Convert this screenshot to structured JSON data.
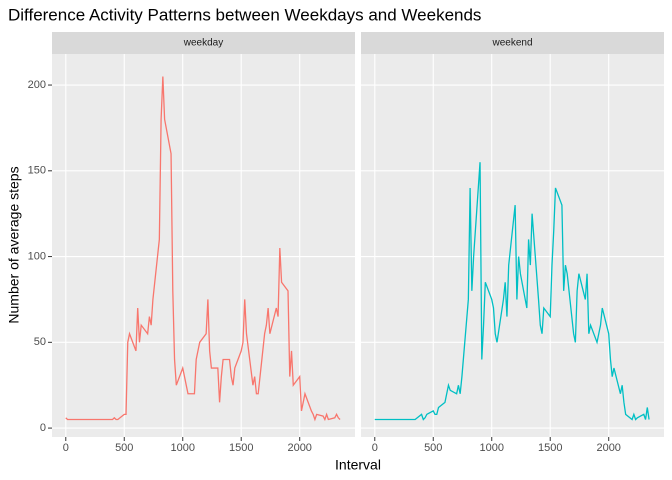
{
  "chart_data": {
    "type": "line",
    "title": "Difference Activity Patterns between Weekdays and Weekends",
    "x_label": "Interval",
    "y_label": "Number of average steps",
    "x": [
      0,
      15,
      30,
      45,
      100,
      115,
      130,
      145,
      200,
      215,
      230,
      245,
      300,
      315,
      330,
      345,
      400,
      415,
      430,
      445,
      500,
      515,
      530,
      545,
      600,
      615,
      630,
      645,
      700,
      715,
      730,
      745,
      800,
      815,
      830,
      845,
      900,
      915,
      930,
      945,
      1000,
      1015,
      1030,
      1045,
      1100,
      1115,
      1130,
      1145,
      1200,
      1215,
      1230,
      1245,
      1300,
      1315,
      1330,
      1345,
      1400,
      1415,
      1430,
      1445,
      1500,
      1515,
      1530,
      1545,
      1600,
      1615,
      1630,
      1645,
      1700,
      1715,
      1730,
      1745,
      1800,
      1815,
      1830,
      1845,
      1900,
      1915,
      1930,
      1945,
      2000,
      2015,
      2030,
      2045,
      2100,
      2115,
      2130,
      2145,
      2200,
      2215,
      2230,
      2245,
      2300,
      2315,
      2330,
      2345
    ],
    "series": [
      {
        "name": "weekday",
        "color": "#F8766D",
        "values": [
          6,
          5,
          5,
          5,
          5,
          5,
          5,
          5,
          5,
          5,
          5,
          5,
          5,
          5,
          5,
          5,
          5,
          6,
          5,
          5,
          8,
          8,
          50,
          55,
          45,
          70,
          50,
          60,
          55,
          65,
          60,
          75,
          110,
          180,
          205,
          180,
          160,
          80,
          40,
          25,
          35,
          30,
          25,
          20,
          20,
          40,
          45,
          50,
          55,
          75,
          45,
          35,
          35,
          15,
          30,
          40,
          40,
          30,
          25,
          35,
          45,
          50,
          75,
          55,
          25,
          30,
          20,
          20,
          55,
          60,
          70,
          55,
          70,
          65,
          105,
          85,
          80,
          30,
          45,
          25,
          30,
          10,
          15,
          20,
          10,
          8,
          5,
          8,
          7,
          5,
          8,
          5,
          6,
          8,
          6,
          5
        ]
      },
      {
        "name": "weekend",
        "color": "#00BFC4",
        "values": [
          5,
          5,
          5,
          5,
          5,
          5,
          5,
          5,
          5,
          5,
          5,
          5,
          5,
          5,
          5,
          5,
          8,
          5,
          6,
          8,
          10,
          8,
          8,
          12,
          15,
          20,
          25,
          22,
          20,
          25,
          20,
          30,
          75,
          140,
          80,
          100,
          155,
          40,
          60,
          85,
          75,
          70,
          55,
          50,
          75,
          85,
          65,
          95,
          130,
          75,
          100,
          90,
          70,
          110,
          95,
          125,
          75,
          60,
          55,
          70,
          65,
          95,
          115,
          140,
          130,
          80,
          95,
          90,
          55,
          50,
          80,
          90,
          75,
          90,
          55,
          60,
          50,
          55,
          60,
          70,
          55,
          40,
          30,
          35,
          20,
          25,
          15,
          8,
          5,
          8,
          5,
          6,
          8,
          5,
          12,
          5
        ]
      }
    ],
    "xlim": [
      -117.75,
      2472.75
    ],
    "xticks": [
      0,
      500,
      1000,
      1500,
      2000
    ],
    "ylim": [
      -5.2,
      218.1
    ],
    "yticks": [
      0,
      50,
      100,
      150,
      200
    ],
    "grid": true
  }
}
